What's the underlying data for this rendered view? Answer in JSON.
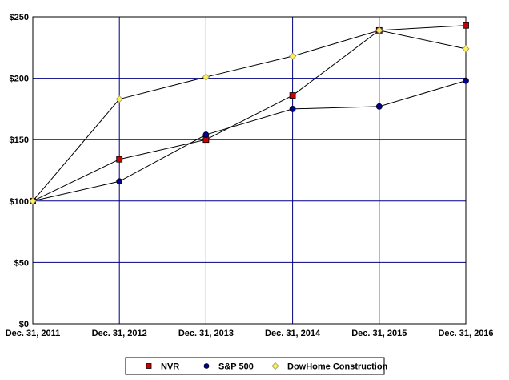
{
  "chart_data": {
    "type": "line",
    "x": [
      "Dec. 31, 2011",
      "Dec. 31, 2012",
      "Dec. 31, 2013",
      "Dec. 31, 2014",
      "Dec. 31, 2015",
      "Dec. 31, 2016"
    ],
    "y_ticks": [
      "$0",
      "$50",
      "$100",
      "$150",
      "$200",
      "$250"
    ],
    "ylim": [
      0,
      250
    ],
    "grid": true,
    "legend_position": "bottom",
    "series": [
      {
        "name": "NVR",
        "values": [
          100,
          134,
          150,
          186,
          239,
          243
        ],
        "color": "#cc0000",
        "marker": "square"
      },
      {
        "name": "S&P 500",
        "values": [
          100,
          116,
          154,
          175,
          177,
          198
        ],
        "color": "#000099",
        "marker": "circle"
      },
      {
        "name": "DowHome Construction",
        "values": [
          100,
          183,
          201,
          218,
          239,
          224
        ],
        "color": "#ffee55",
        "marker": "diamond"
      }
    ],
    "colors": {
      "grid": "#000080",
      "line": "#000000",
      "frame": "#000000"
    }
  }
}
